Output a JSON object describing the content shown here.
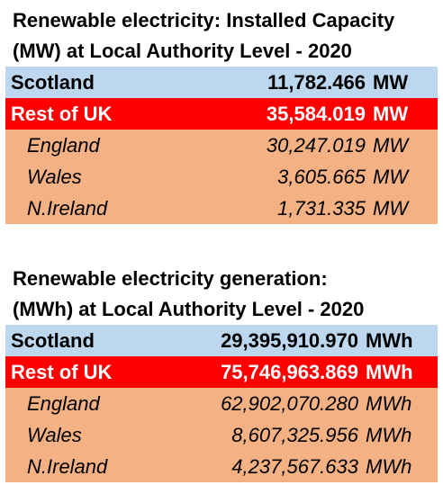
{
  "capacity": {
    "title_line1": "Renewable electricity: Installed Capacity",
    "title_line2": "(MW) at Local Authority Level - 2020",
    "rows": [
      {
        "label": "Scotland",
        "value": "11,782.466",
        "unit": "MW"
      },
      {
        "label": "Rest of UK",
        "value": "35,584.019",
        "unit": "MW"
      },
      {
        "label": "England",
        "value": "30,247.019",
        "unit": "MW"
      },
      {
        "label": "Wales",
        "value": "3,605.665",
        "unit": "MW"
      },
      {
        "label": "N.Ireland",
        "value": "1,731.335",
        "unit": "MW"
      }
    ]
  },
  "generation": {
    "title_line1": "Renewable electricity generation:",
    "title_line2": "(MWh) at Local Authority Level - 2020",
    "rows": [
      {
        "label": "Scotland",
        "value": "29,395,910.970",
        "unit": "MWh"
      },
      {
        "label": "Rest of UK",
        "value": "75,746,963.869",
        "unit": "MWh"
      },
      {
        "label": "England",
        "value": "62,902,070.280",
        "unit": "MWh"
      },
      {
        "label": "Wales",
        "value": "8,607,325.956",
        "unit": "MWh"
      },
      {
        "label": "N.Ireland",
        "value": "4,237,567.633",
        "unit": "MWh"
      }
    ]
  },
  "colors": {
    "scotland_fill": "#bdd7ee",
    "rest_of_uk_fill": "#ff0000",
    "nations_fill": "#f4b183"
  }
}
